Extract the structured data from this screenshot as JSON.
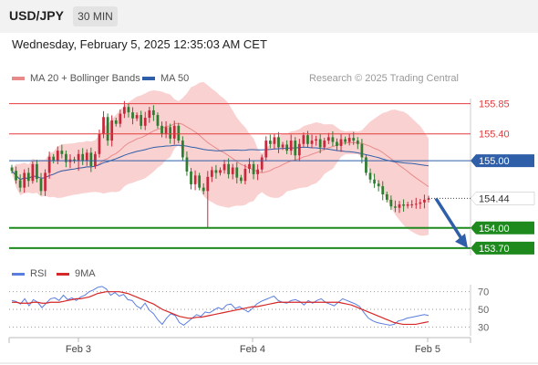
{
  "header": {
    "symbol": "USD/JPY",
    "timeframe": "30 MIN"
  },
  "datetime": "Wednesday, February 5, 2025 12:35:03 AM CET",
  "credit": "Research © 2025 Trading Central",
  "legend": {
    "ma20": "MA 20 + Bollinger Bands",
    "ma50": "MA 50",
    "rsi": "RSI",
    "ma9": "9MA"
  },
  "colors": {
    "up": "#c8283a",
    "down": "#2f7d2f",
    "bands": "#f8c2c2",
    "ma20": "#e98a8a",
    "ma50": "#2f5fa8",
    "support": "#1e8a1e",
    "resistance": "#e23c3c",
    "arrow": "#2f5fa8",
    "rsi": "#5a7de0",
    "ma9": "#d62828"
  },
  "chart_data": {
    "type": "candlestick",
    "ylim": [
      153.59,
      156.17
    ],
    "x_ticks": [
      "Feb 3",
      "Feb 4",
      "Feb 5"
    ],
    "current_price": 154.44,
    "levels": [
      {
        "value": 155.85,
        "label": "155.85",
        "kind": "resistance"
      },
      {
        "value": 155.4,
        "label": "155.40",
        "kind": "resistance"
      },
      {
        "value": 155.0,
        "label": "155.00",
        "kind": "ma50"
      },
      {
        "value": 154.0,
        "label": "154.00",
        "kind": "support"
      },
      {
        "value": 153.7,
        "label": "153.70",
        "kind": "support"
      }
    ],
    "forecast_arrow": {
      "from": 154.44,
      "to": 153.7
    },
    "closes": [
      154.85,
      154.71,
      154.6,
      154.82,
      154.7,
      154.95,
      154.73,
      154.55,
      154.82,
      155.06,
      155.0,
      155.15,
      155.1,
      154.98,
      155.02,
      155.0,
      155.1,
      155.0,
      155.12,
      154.92,
      155.1,
      155.4,
      155.65,
      155.3,
      155.6,
      155.55,
      155.7,
      155.8,
      155.72,
      155.63,
      155.68,
      155.52,
      155.64,
      155.75,
      155.68,
      155.52,
      155.4,
      155.5,
      155.33,
      155.52,
      155.3,
      155.05,
      154.84,
      154.65,
      154.78,
      154.6,
      154.55,
      154.76,
      154.86,
      154.82,
      154.86,
      154.95,
      154.8,
      154.9,
      154.75,
      154.7,
      154.88,
      154.95,
      154.8,
      154.87,
      155.05,
      155.3,
      155.25,
      155.35,
      155.2,
      155.24,
      155.15,
      155.3,
      155.08,
      155.25,
      155.38,
      155.25,
      155.3,
      155.32,
      155.2,
      155.3,
      155.35,
      155.28,
      155.22,
      155.32,
      155.28,
      155.34,
      155.3,
      155.25,
      155.05,
      154.82,
      154.72,
      154.66,
      154.62,
      154.5,
      154.42,
      154.32,
      154.3,
      154.35,
      154.33,
      154.35,
      154.35,
      154.36,
      154.38,
      154.42,
      154.44
    ],
    "rsi": {
      "ylim": [
        20,
        80
      ],
      "ticks": [
        70,
        50,
        30
      ],
      "rsi_values": [
        60,
        59,
        56,
        62,
        54,
        61,
        58,
        52,
        57,
        62,
        63,
        60,
        66,
        61,
        63,
        60,
        64,
        66,
        70,
        72,
        75,
        76,
        73,
        66,
        69,
        65,
        67,
        61,
        60,
        54,
        51,
        57,
        49,
        45,
        38,
        33,
        40,
        45,
        43,
        35,
        32,
        36,
        40,
        44,
        42,
        47,
        46,
        49,
        52,
        50,
        55,
        56,
        51,
        53,
        50,
        47,
        51,
        56,
        59,
        61,
        63,
        65,
        60,
        58,
        57,
        60,
        61,
        59,
        55,
        60,
        57,
        60,
        62,
        58,
        56,
        54,
        58,
        62,
        60,
        58,
        56,
        53,
        46,
        40,
        37,
        35,
        34,
        33,
        32,
        33,
        37,
        38,
        40,
        41,
        42,
        43,
        44,
        43
      ],
      "ma9_values": [
        58,
        58,
        57,
        57,
        57,
        58,
        58,
        57,
        57,
        58,
        58,
        58,
        59,
        60,
        61,
        62,
        62,
        63,
        64,
        66,
        68,
        69,
        70,
        70,
        70,
        70,
        69,
        68,
        66,
        64,
        62,
        60,
        58,
        56,
        53,
        50,
        48,
        46,
        44,
        42,
        41,
        40,
        40,
        41,
        41,
        42,
        43,
        44,
        45,
        46,
        47,
        48,
        49,
        50,
        51,
        52,
        53,
        53,
        54,
        55,
        56,
        57,
        58,
        58,
        58,
        58,
        58,
        58,
        58,
        58,
        58,
        58,
        58,
        58,
        58,
        58,
        58,
        57,
        56,
        55,
        53,
        51,
        49,
        47,
        45,
        43,
        41,
        39,
        37,
        35,
        34,
        33,
        33,
        33,
        33,
        34,
        35,
        36
      ]
    }
  }
}
